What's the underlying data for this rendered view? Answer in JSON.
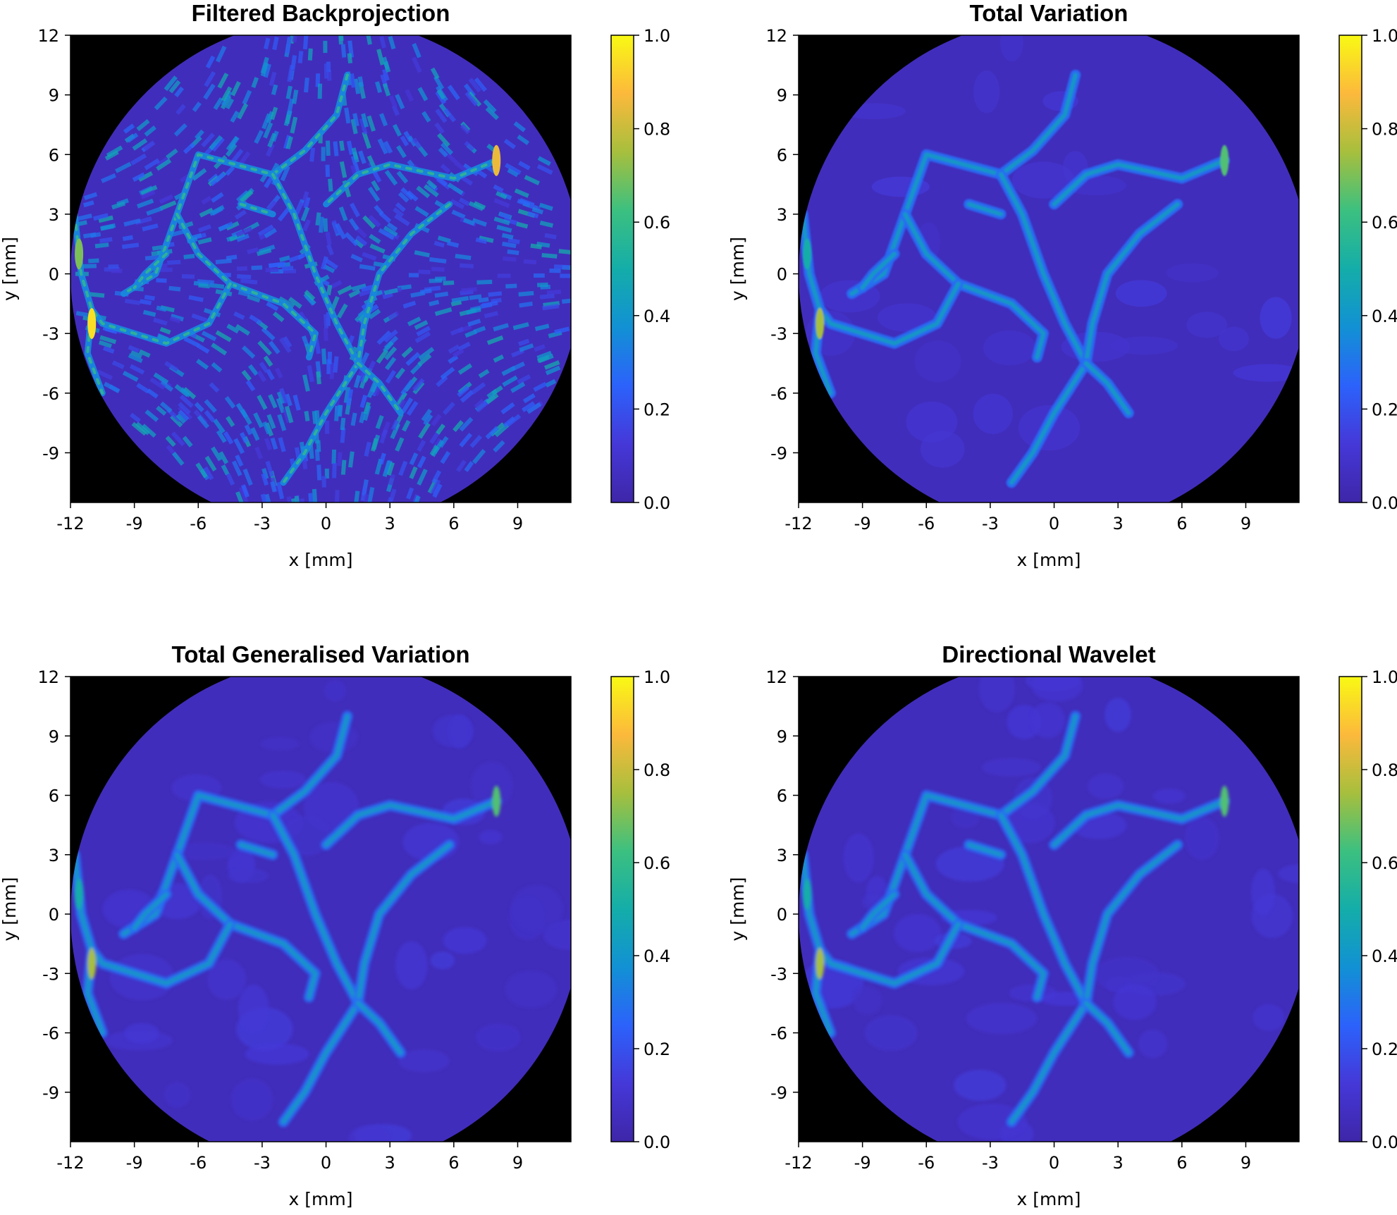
{
  "colors": {
    "colormap": [
      "#3e26a8",
      "#4538d8",
      "#2c62fb",
      "#1291d4",
      "#14ada9",
      "#3cc080",
      "#a7bf3d",
      "#fcb93c",
      "#f9f914"
    ],
    "background": "#000000",
    "vessel_low": "#2f7fe0",
    "vessel_high": "#5ad0b8"
  },
  "chart_data": [
    {
      "type": "heatmap",
      "title": "Filtered Backprojection",
      "xlabel": "x [mm]",
      "ylabel": "y [mm]",
      "x_ticks": [
        "-12",
        "-9",
        "-6",
        "-3",
        "0",
        "3",
        "6",
        "9"
      ],
      "y_ticks": [
        "12",
        "9",
        "6",
        "3",
        "0",
        "-3",
        "-6",
        "-9"
      ],
      "xlim": [
        -12,
        11.5
      ],
      "ylim": [
        -11.5,
        12
      ],
      "colorbar_ticks": [
        "1.0",
        "0.8",
        "0.6",
        "0.4",
        "0.2",
        "0.0"
      ],
      "colorbar_range": [
        0,
        1
      ],
      "field_of_view": "circular, radius 12 mm",
      "background_level": 0.05,
      "noise": "strong streak artifacts"
    },
    {
      "type": "heatmap",
      "title": "Total Variation",
      "xlabel": "x [mm]",
      "ylabel": "y [mm]",
      "x_ticks": [
        "-12",
        "-9",
        "-6",
        "-3",
        "0",
        "3",
        "6",
        "9"
      ],
      "y_ticks": [
        "12",
        "9",
        "6",
        "3",
        "0",
        "-3",
        "-6",
        "-9"
      ],
      "xlim": [
        -12,
        11.5
      ],
      "ylim": [
        -11.5,
        12
      ],
      "colorbar_ticks": [
        "1.0",
        "0.8",
        "0.6",
        "0.4",
        "0.2",
        "0.0"
      ],
      "colorbar_range": [
        0,
        1
      ],
      "field_of_view": "circular, radius 12 mm",
      "background_level": 0.05,
      "noise": "piecewise constant"
    },
    {
      "type": "heatmap",
      "title": "Total Generalised Variation",
      "xlabel": "x [mm]",
      "ylabel": "y [mm]",
      "x_ticks": [
        "-12",
        "-9",
        "-6",
        "-3",
        "0",
        "3",
        "6",
        "9"
      ],
      "y_ticks": [
        "12",
        "9",
        "6",
        "3",
        "0",
        "-3",
        "-6",
        "-9"
      ],
      "xlim": [
        -12,
        11.5
      ],
      "ylim": [
        -11.5,
        12
      ],
      "colorbar_ticks": [
        "1.0",
        "0.8",
        "0.6",
        "0.4",
        "0.2",
        "0.0"
      ],
      "colorbar_range": [
        0,
        1
      ],
      "field_of_view": "circular, radius 12 mm",
      "background_level": 0.05,
      "noise": "smooth"
    },
    {
      "type": "heatmap",
      "title": "Directional Wavelet",
      "xlabel": "x [mm]",
      "ylabel": "y [mm]",
      "x_ticks": [
        "-12",
        "-9",
        "-6",
        "-3",
        "0",
        "3",
        "6",
        "9"
      ],
      "y_ticks": [
        "12",
        "9",
        "6",
        "3",
        "0",
        "-3",
        "-6",
        "-9"
      ],
      "xlim": [
        -12,
        11.5
      ],
      "ylim": [
        -11.5,
        12
      ],
      "colorbar_ticks": [
        "1.0",
        "0.8",
        "0.6",
        "0.4",
        "0.2",
        "0.0"
      ],
      "colorbar_range": [
        0,
        1
      ],
      "field_of_view": "circular, radius 12 mm",
      "background_level": 0.05,
      "noise": "directional texture"
    }
  ],
  "vessels": [
    {
      "name": "upper-central",
      "points": [
        [
          1.0,
          10.0
        ],
        [
          0.5,
          8.0
        ],
        [
          -1.0,
          6.2
        ],
        [
          -2.5,
          5.0
        ],
        [
          -6.0,
          6.0
        ],
        [
          -7.0,
          3.0
        ],
        [
          -8.0,
          0.0
        ],
        [
          -9.5,
          -1.0
        ]
      ]
    },
    {
      "name": "upper-right",
      "points": [
        [
          8.0,
          5.7
        ],
        [
          6.0,
          4.8
        ],
        [
          3.0,
          5.5
        ],
        [
          1.5,
          5.0
        ],
        [
          0.0,
          3.5
        ]
      ]
    },
    {
      "name": "central-cross",
      "points": [
        [
          -2.5,
          5.0
        ],
        [
          -1.5,
          3.0
        ],
        [
          -0.5,
          0.0
        ],
        [
          0.5,
          -2.5
        ],
        [
          1.5,
          -4.5
        ]
      ]
    },
    {
      "name": "right-branch",
      "points": [
        [
          5.8,
          3.5
        ],
        [
          4.0,
          2.0
        ],
        [
          2.5,
          0.0
        ],
        [
          1.8,
          -2.5
        ],
        [
          1.5,
          -4.5
        ],
        [
          0.0,
          -7.0
        ],
        [
          -1.0,
          -9.0
        ],
        [
          -2.0,
          -10.5
        ]
      ]
    },
    {
      "name": "lower-spur",
      "points": [
        [
          1.5,
          -4.5
        ],
        [
          2.5,
          -5.5
        ],
        [
          3.5,
          -7.0
        ]
      ]
    },
    {
      "name": "diagonal",
      "points": [
        [
          -7.0,
          3.0
        ],
        [
          -6.0,
          1.0
        ],
        [
          -4.5,
          -0.5
        ],
        [
          -2.0,
          -1.5
        ],
        [
          -0.5,
          -3.0
        ],
        [
          -0.8,
          -4.2
        ]
      ]
    },
    {
      "name": "lower-arc",
      "points": [
        [
          -4.5,
          -0.5
        ],
        [
          -5.5,
          -2.5
        ],
        [
          -7.5,
          -3.5
        ],
        [
          -10.5,
          -2.5
        ],
        [
          -11.0,
          -1.8
        ]
      ]
    },
    {
      "name": "left-edge",
      "points": [
        [
          -11.8,
          3.0
        ],
        [
          -11.5,
          0.0
        ],
        [
          -11.0,
          -1.8
        ],
        [
          -11.2,
          -4.0
        ],
        [
          -10.5,
          -6.0
        ]
      ]
    },
    {
      "name": "short-left",
      "points": [
        [
          -7.5,
          1.0
        ],
        [
          -8.5,
          0.0
        ],
        [
          -9.0,
          -0.7
        ]
      ]
    },
    {
      "name": "upper-left-stub",
      "points": [
        [
          -4.0,
          3.5
        ],
        [
          -2.5,
          3.0
        ]
      ]
    }
  ]
}
